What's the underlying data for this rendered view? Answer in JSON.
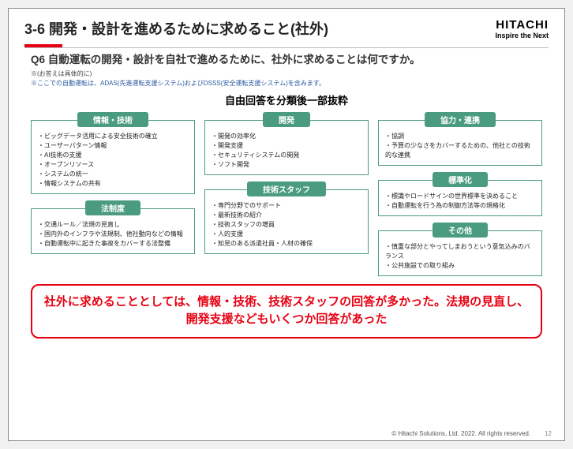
{
  "header": {
    "title": "3-6  開発・設計を進めるために求めること(社外)",
    "logo_main": "HITACHI",
    "logo_sub": "Inspire the Next"
  },
  "question": {
    "title": "Q6  自動運転の開発・設計を自社で進めるために、社外に求めることは何ですか。",
    "note1": "※(お答えは具体的に)",
    "note2": "※ここでの自動運転は、ADAS(先進運転支援システム)およびDSSS(安全運転支援システム)を含みます。"
  },
  "sub_heading": "自由回答を分類後一部抜粋",
  "col1": {
    "g1": {
      "label": "情報・技術",
      "items": [
        "ビッグデータ活用による安全技術の確立",
        "ユーザーパターン情報",
        "AI技術の支援",
        "オープンリソース",
        "システムの統一",
        "情報システムの共有"
      ]
    },
    "g2": {
      "label": "法制度",
      "items": [
        "交通ルール／法規の見直し",
        "国内外のインフラや法規制、他社動向などの情報",
        "自動運転中に起きた事故をカバーする法整備"
      ]
    }
  },
  "col2": {
    "g1": {
      "label": "開発",
      "items": [
        "開発の効率化",
        "開発支援",
        "セキュリティシステムの開発",
        "ソフト開発"
      ]
    },
    "g2": {
      "label": "技術スタッフ",
      "items": [
        "専門分野でのサポート",
        "最新技術の紹介",
        "技術スタッフの増員",
        "人的支援",
        "知見のある派遣社員・人材の確保"
      ]
    }
  },
  "col3": {
    "g1": {
      "label": "協力・連携",
      "items": [
        "協調",
        "予算の少なさをカバーするための、他社との技術的な連携"
      ]
    },
    "g2": {
      "label": "標準化",
      "items": [
        "標識やロードサインの世界標準を決めること",
        "自動運転を行う為の制御方法等の規格化"
      ]
    },
    "g3": {
      "label": "その他",
      "items": [
        "慎重な部分とやってしまおうという意気込みのバランス",
        "公共施設での取り組み"
      ]
    }
  },
  "conclusion": "社外に求めることとしては、情報・技術、技術スタッフの回答が多かった。法規の見直し、開発支援などもいくつか回答があった",
  "footer": {
    "copyright": "© Hitachi Solutions, Ltd. 2022. All rights reserved.",
    "page": "12"
  }
}
